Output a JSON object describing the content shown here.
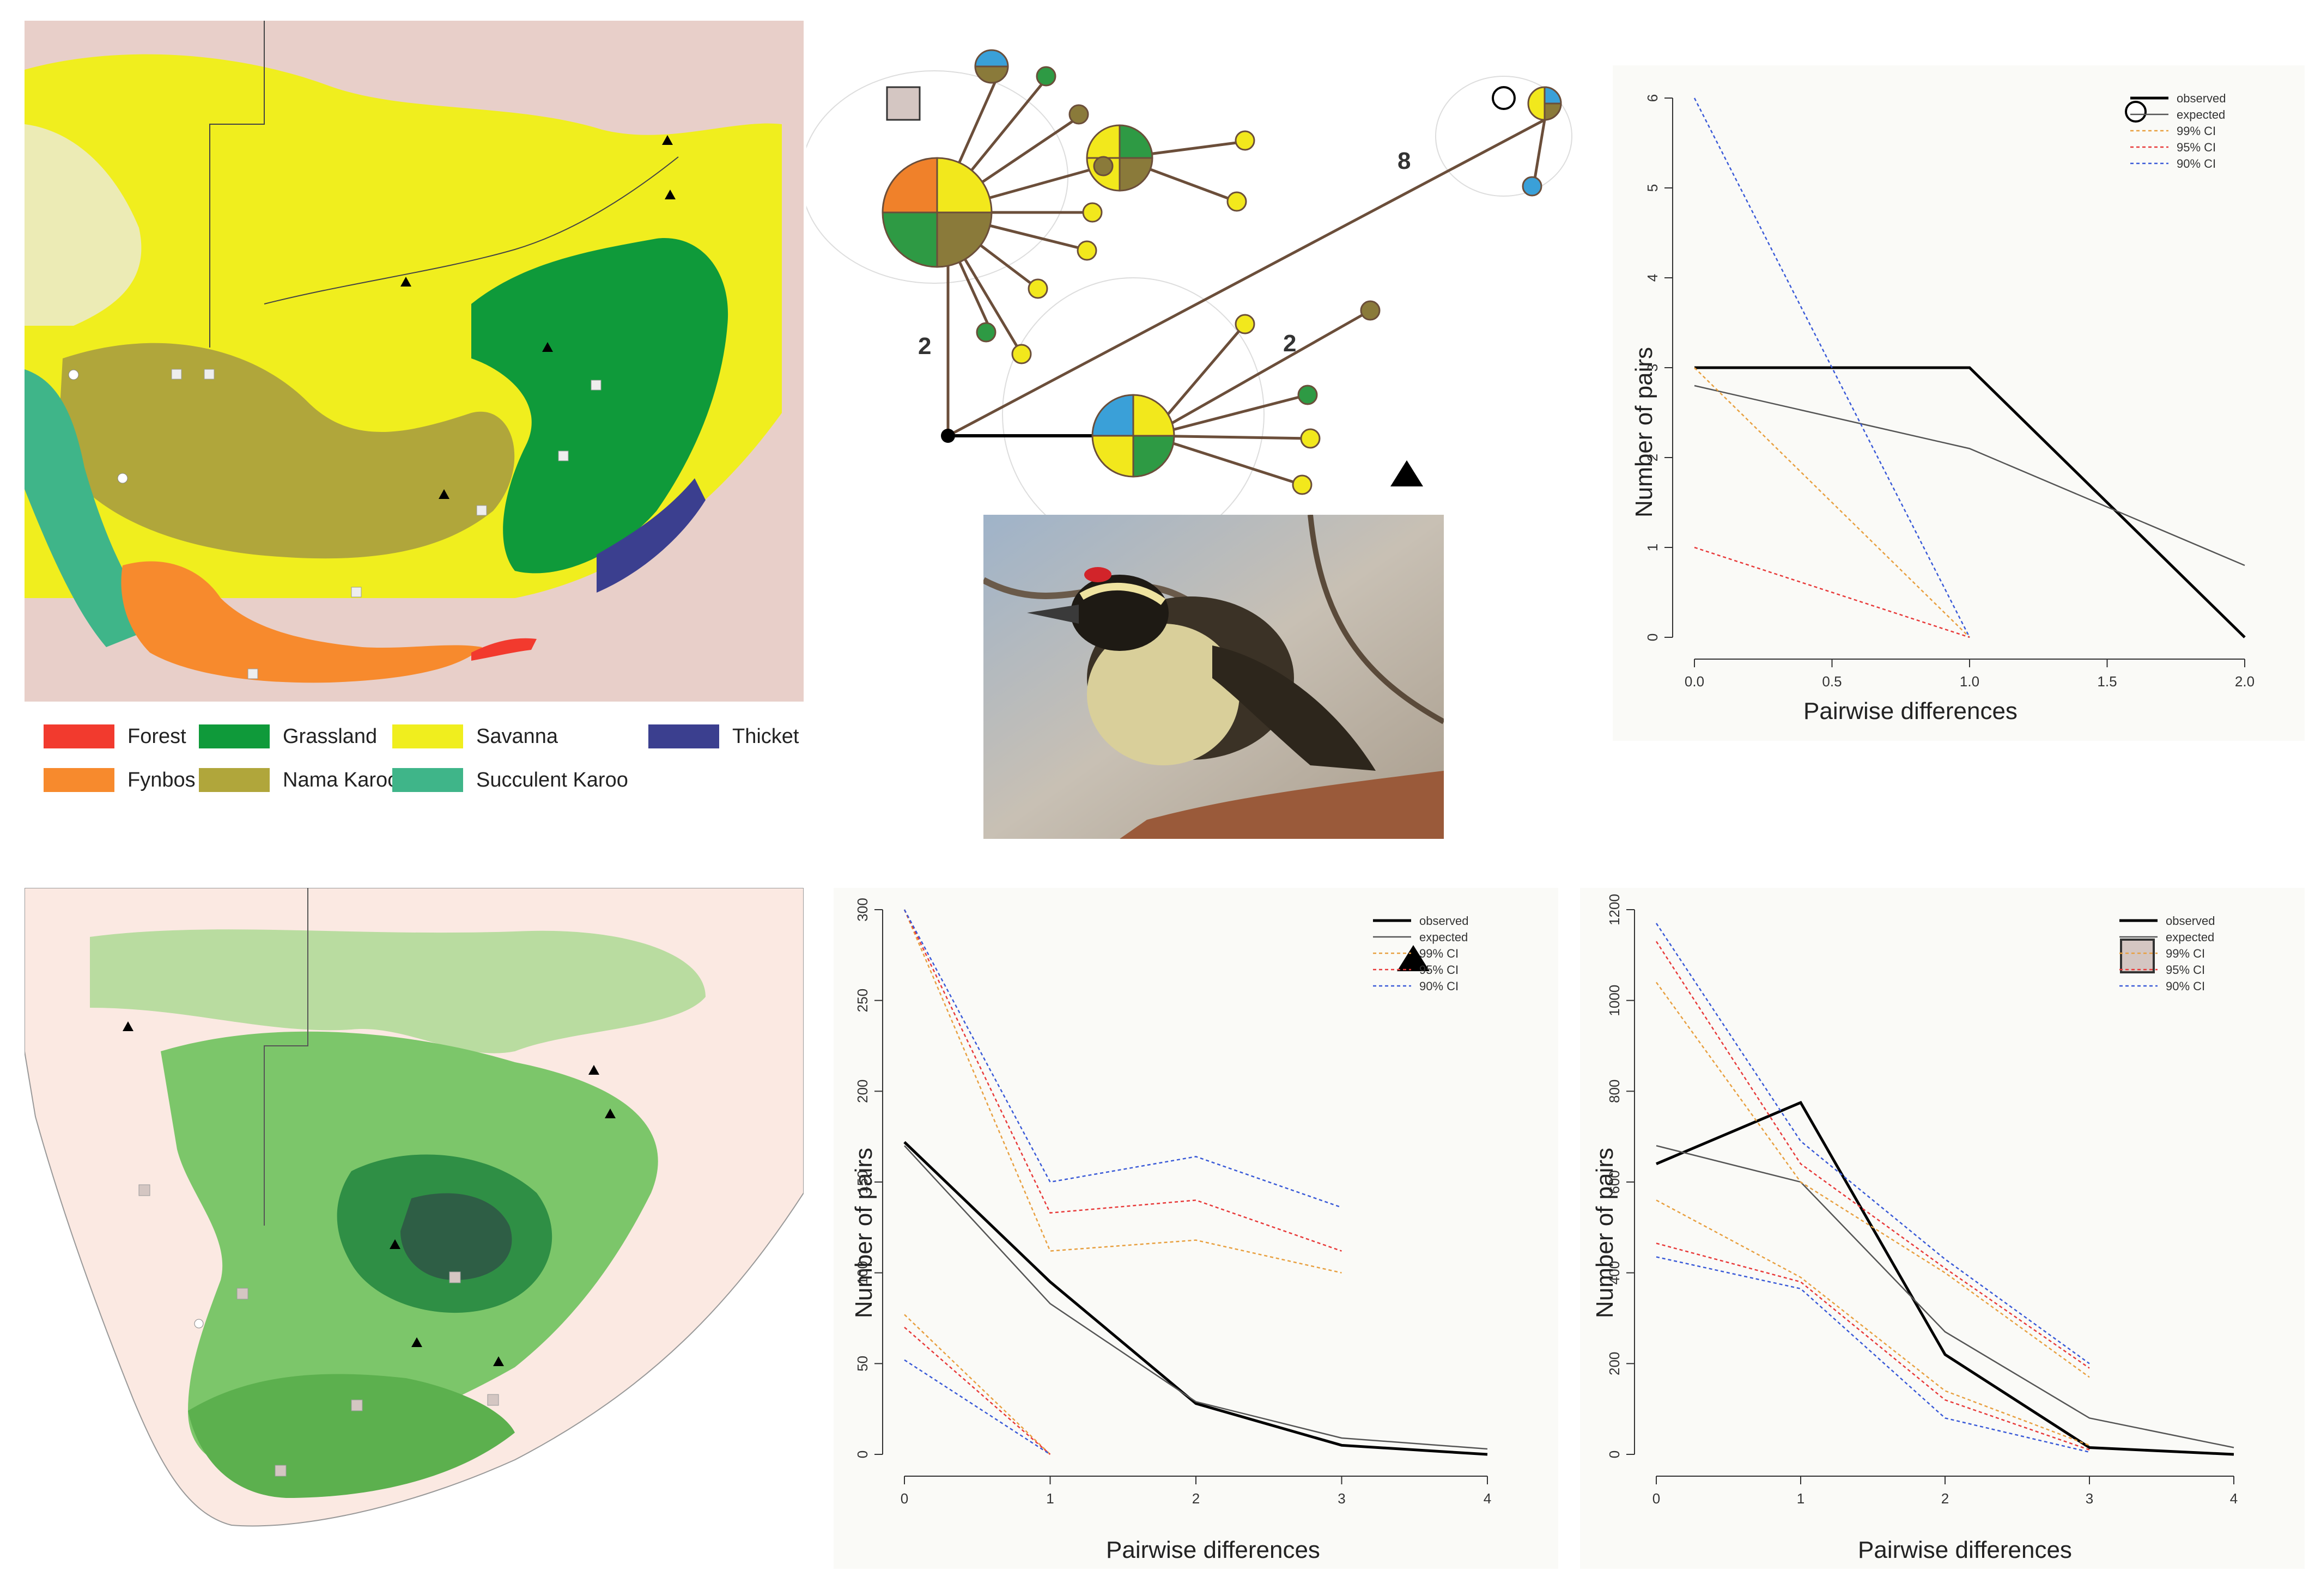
{
  "colors": {
    "forest": "#f23a2e",
    "fynbos": "#f78a2d",
    "grassland": "#0f9a3a",
    "nama_karoo": "#b0a63b",
    "savanna": "#f0ee1e",
    "succulent_karoo": "#3fb589",
    "thicket": "#3b3f8f",
    "land_bg": "#e8cfc9",
    "observed": "#000000",
    "expected": "#555555",
    "ci99": "#e8a040",
    "ci95": "#e83a3a",
    "ci90": "#3a8a3a",
    "ci90_blue": "#3a5ad8",
    "hap_blue": "#3aa0d8",
    "hap_green": "#2e9a44",
    "hap_yellow": "#f2e81c",
    "hap_olive": "#8a7a3a",
    "hap_orange": "#f0812a"
  },
  "biome_legend": [
    {
      "key": "forest",
      "label": "Forest"
    },
    {
      "key": "grassland",
      "label": "Grassland"
    },
    {
      "key": "savanna",
      "label": "Savanna"
    },
    {
      "key": "thicket",
      "label": "Thicket"
    },
    {
      "key": "fynbos",
      "label": "Fynbos"
    },
    {
      "key": "nama_karoo",
      "label": "Nama Karoo"
    },
    {
      "key": "succulent_karoo",
      "label": "Succulent Karoo"
    }
  ],
  "network": {
    "label_2a": "2",
    "label_2b": "2",
    "label_8": "8"
  },
  "chart_data": [
    {
      "id": "circle-clade",
      "type": "line",
      "xlabel": "Pairwise differences",
      "ylabel": "Number of pairs",
      "xlim": [
        0,
        2
      ],
      "ylim": [
        0,
        6
      ],
      "xticks": [
        "0.0",
        "0.5",
        "1.0",
        "1.5",
        "2.0"
      ],
      "yticks": [
        "0",
        "1",
        "2",
        "3",
        "4",
        "5",
        "6"
      ],
      "legend": [
        "observed",
        "expected",
        "99% CI",
        "95% CI",
        "90% CI"
      ],
      "legend_position": "top-right",
      "series": [
        {
          "name": "observed",
          "x": [
            0,
            1,
            2
          ],
          "y": [
            3,
            3,
            0
          ]
        },
        {
          "name": "expected",
          "x": [
            0,
            1,
            2
          ],
          "y": [
            2.8,
            2.1,
            0.8
          ]
        },
        {
          "name": "99% CI",
          "x": [
            0,
            1
          ],
          "y": [
            3.0,
            0.0
          ]
        },
        {
          "name": "95% CI",
          "x": [
            0,
            1
          ],
          "y": [
            1.0,
            0.0
          ]
        },
        {
          "name": "90% CI",
          "x": [
            0,
            1
          ],
          "y": [
            6.0,
            0.0
          ]
        }
      ]
    },
    {
      "id": "triangle-clade",
      "type": "line",
      "xlabel": "Pairwise differences",
      "ylabel": "Number of pairs",
      "xlim": [
        0,
        4
      ],
      "ylim": [
        0,
        300
      ],
      "xticks": [
        "0",
        "1",
        "2",
        "3",
        "4"
      ],
      "yticks": [
        "0",
        "50",
        "100",
        "150",
        "200",
        "250",
        "300"
      ],
      "legend": [
        "observed",
        "expected",
        "99% CI",
        "95% CI",
        "90% CI"
      ],
      "legend_position": "top-right",
      "series": [
        {
          "name": "observed",
          "x": [
            0,
            1,
            2,
            3,
            4
          ],
          "y": [
            172,
            95,
            28,
            5,
            0
          ]
        },
        {
          "name": "expected",
          "x": [
            0,
            1,
            2,
            3,
            4
          ],
          "y": [
            170,
            83,
            29,
            9,
            3
          ]
        },
        {
          "name": "99% CI upper",
          "x": [
            0,
            1,
            2,
            3
          ],
          "y": [
            300,
            112,
            118,
            100
          ]
        },
        {
          "name": "95% CI upper",
          "x": [
            0,
            1,
            2,
            3
          ],
          "y": [
            300,
            133,
            140,
            112
          ]
        },
        {
          "name": "90% CI upper",
          "x": [
            0,
            1,
            2,
            3
          ],
          "y": [
            300,
            150,
            164,
            136
          ]
        },
        {
          "name": "99% CI lower",
          "x": [
            0,
            1
          ],
          "y": [
            77,
            0
          ]
        },
        {
          "name": "95% CI lower",
          "x": [
            0,
            1
          ],
          "y": [
            70,
            0
          ]
        },
        {
          "name": "90% CI lower",
          "x": [
            0,
            1
          ],
          "y": [
            52,
            0
          ]
        }
      ]
    },
    {
      "id": "square-clade",
      "type": "line",
      "xlabel": "Pairwise differences",
      "ylabel": "Number of pairs",
      "xlim": [
        0,
        4
      ],
      "ylim": [
        0,
        1200
      ],
      "xticks": [
        "0",
        "1",
        "2",
        "3",
        "4"
      ],
      "yticks": [
        "0",
        "200",
        "400",
        "600",
        "800",
        "1000",
        "1200"
      ],
      "legend": [
        "observed",
        "expected",
        "99% CI",
        "95% CI",
        "90% CI"
      ],
      "legend_position": "top-right",
      "series": [
        {
          "name": "observed",
          "x": [
            0,
            1,
            2,
            3,
            4
          ],
          "y": [
            640,
            775,
            220,
            15,
            0
          ]
        },
        {
          "name": "expected",
          "x": [
            0,
            1,
            2,
            3,
            4
          ],
          "y": [
            680,
            600,
            270,
            80,
            15
          ]
        },
        {
          "name": "99% CI upper",
          "x": [
            0,
            1,
            2,
            3
          ],
          "y": [
            1040,
            600,
            400,
            170
          ]
        },
        {
          "name": "95% CI upper",
          "x": [
            0,
            1,
            2,
            3
          ],
          "y": [
            1130,
            640,
            410,
            190
          ]
        },
        {
          "name": "90% CI upper",
          "x": [
            0,
            1,
            2,
            3
          ],
          "y": [
            1170,
            690,
            430,
            200
          ]
        },
        {
          "name": "99% CI lower",
          "x": [
            0,
            1,
            2,
            3
          ],
          "y": [
            560,
            390,
            140,
            20
          ]
        },
        {
          "name": "95% CI lower",
          "x": [
            0,
            1,
            2,
            3
          ],
          "y": [
            465,
            380,
            120,
            10
          ]
        },
        {
          "name": "90% CI lower",
          "x": [
            0,
            1,
            2,
            3
          ],
          "y": [
            435,
            365,
            80,
            5
          ]
        }
      ]
    }
  ]
}
